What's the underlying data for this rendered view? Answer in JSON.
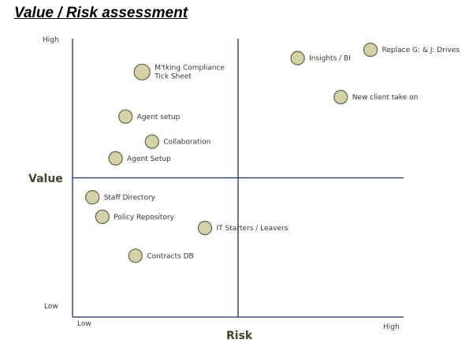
{
  "title": "Value / Risk assessment",
  "chart_data": {
    "type": "scatter",
    "title": "Value / Risk assessment",
    "xlabel": "Risk",
    "ylabel": "Value",
    "xlim": [
      0,
      10
    ],
    "ylim": [
      0,
      10
    ],
    "x_ticks": [
      "Low",
      "High"
    ],
    "y_ticks": [
      "Low",
      "High"
    ],
    "quadrant_lines": {
      "x": 5,
      "y": 5
    },
    "grid": false,
    "marker_color": "#d6d2a8",
    "points": [
      {
        "label": "M'tking Compliance\nTick Sheet",
        "x": 2.1,
        "y": 8.8,
        "size": "large"
      },
      {
        "label": "Insights / BI",
        "x": 6.8,
        "y": 9.3,
        "size": "medium"
      },
      {
        "label": "Replace G: & J: Drives",
        "x": 9.0,
        "y": 9.6,
        "size": "medium"
      },
      {
        "label": "New client take on",
        "x": 8.1,
        "y": 7.9,
        "size": "medium"
      },
      {
        "label": "Agent setup",
        "x": 1.6,
        "y": 7.2,
        "size": "medium"
      },
      {
        "label": "Collaboration",
        "x": 2.4,
        "y": 6.3,
        "size": "medium"
      },
      {
        "label": "Agent Setup",
        "x": 1.3,
        "y": 5.7,
        "size": "medium"
      },
      {
        "label": "Staff Directory",
        "x": 0.6,
        "y": 4.3,
        "size": "medium"
      },
      {
        "label": "Policy Repository",
        "x": 0.9,
        "y": 3.6,
        "size": "medium"
      },
      {
        "label": "IT Starters / Leavers",
        "x": 4.0,
        "y": 3.2,
        "size": "medium"
      },
      {
        "label": "Contracts DB",
        "x": 1.9,
        "y": 2.2,
        "size": "medium"
      }
    ]
  }
}
